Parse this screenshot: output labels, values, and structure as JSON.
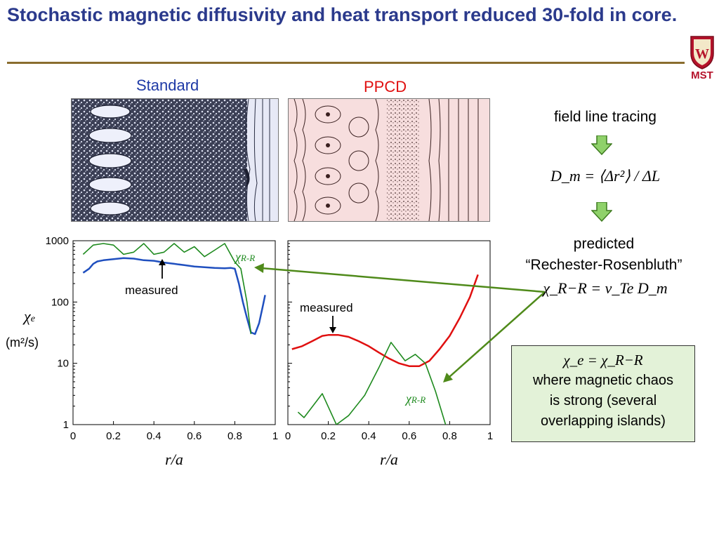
{
  "title": "Stochastic magnetic diffusivity and heat transport reduced 30-fold in core.",
  "logo": {
    "name": "MST",
    "text": "MST"
  },
  "panels": {
    "standard_label": "Standard",
    "ppcd_label": "PPCD"
  },
  "right": {
    "field_line_tracing": "field line tracing",
    "dm_formula": "D_m = ⟨Δr²⟩ / ΔL",
    "predicted": "predicted",
    "rr_label": "“Rechester-Rosenbluth”",
    "chi_formula": "χ_R−R = v_Te D_m"
  },
  "box": {
    "formula": "χ_e = χ_R−R",
    "line1": "where magnetic chaos",
    "line2": "is strong (several",
    "line3": "overlapping islands)"
  },
  "colors": {
    "title": "#2b3a8c",
    "measured_standard": "#1f4fbf",
    "measured_ppcd": "#e01010",
    "rr": "#1e8a1e",
    "annotation_arrow": "#4f8a1a",
    "standard_bg": "#dfe3f3",
    "ppcd_bg": "#f7dede",
    "box_bg": "#e3f2d8"
  },
  "chart_data": [
    {
      "type": "line",
      "panel": "Standard",
      "xlabel": "r/a",
      "ylabel": "χ_e (m²/s)",
      "ylabel_main": "χ",
      "ylabel_sub": "e",
      "ylabel_units": "(m²/s)",
      "yscale": "log",
      "xlim": [
        0,
        1
      ],
      "ylim": [
        1,
        1000
      ],
      "xticks": [
        "0",
        "0.2",
        "0.4",
        "0.6",
        "0.8",
        "1"
      ],
      "yticks": [
        "1",
        "10",
        "100",
        "1000"
      ],
      "annotation": "measured",
      "series": [
        {
          "name": "measured",
          "color": "#1f4fbf",
          "x": [
            0.05,
            0.08,
            0.1,
            0.12,
            0.15,
            0.2,
            0.25,
            0.3,
            0.35,
            0.4,
            0.45,
            0.5,
            0.55,
            0.6,
            0.65,
            0.7,
            0.75,
            0.78,
            0.8,
            0.82,
            0.84,
            0.86,
            0.88,
            0.9,
            0.92,
            0.94,
            0.95
          ],
          "y": [
            300,
            350,
            420,
            460,
            480,
            500,
            520,
            510,
            480,
            470,
            440,
            420,
            400,
            380,
            370,
            360,
            355,
            360,
            350,
            200,
            100,
            55,
            32,
            30,
            45,
            90,
            130
          ]
        },
        {
          "name": "χR-R",
          "label_main": "χ",
          "label_sub": "R-R",
          "color": "#1e8a1e",
          "x": [
            0.05,
            0.1,
            0.15,
            0.2,
            0.25,
            0.3,
            0.35,
            0.4,
            0.45,
            0.5,
            0.55,
            0.6,
            0.65,
            0.7,
            0.75,
            0.8,
            0.83,
            0.86,
            0.88
          ],
          "y": [
            600,
            850,
            900,
            850,
            600,
            650,
            900,
            600,
            650,
            900,
            650,
            800,
            550,
            700,
            900,
            450,
            350,
            100,
            30
          ]
        }
      ]
    },
    {
      "type": "line",
      "panel": "PPCD",
      "xlabel": "r/a",
      "yscale": "log",
      "xlim": [
        0,
        1
      ],
      "ylim": [
        1,
        1000
      ],
      "xticks": [
        "0",
        "0.2",
        "0.4",
        "0.6",
        "0.8",
        "1"
      ],
      "annotation": "measured",
      "series": [
        {
          "name": "measured",
          "color": "#e01010",
          "x": [
            0.02,
            0.07,
            0.12,
            0.17,
            0.2,
            0.25,
            0.3,
            0.35,
            0.4,
            0.45,
            0.5,
            0.55,
            0.6,
            0.65,
            0.7,
            0.75,
            0.8,
            0.85,
            0.9,
            0.94
          ],
          "y": [
            17,
            19,
            23,
            28,
            29,
            29,
            27,
            23,
            19,
            15,
            12,
            10,
            9,
            9,
            11,
            17,
            28,
            55,
            120,
            280
          ]
        },
        {
          "name": "χR-R",
          "label_main": "χ",
          "label_sub": "R-R",
          "color": "#1e8a1e",
          "x": [
            0.05,
            0.08,
            0.17,
            0.24,
            0.3,
            0.38,
            0.45,
            0.51,
            0.58,
            0.63,
            0.68,
            0.73,
            0.78,
            0.8
          ],
          "y": [
            1.6,
            1.3,
            3.2,
            1.0,
            1.4,
            3.0,
            8.5,
            22,
            11,
            14,
            10,
            3.5,
            1.0,
            0.7
          ]
        }
      ]
    }
  ]
}
